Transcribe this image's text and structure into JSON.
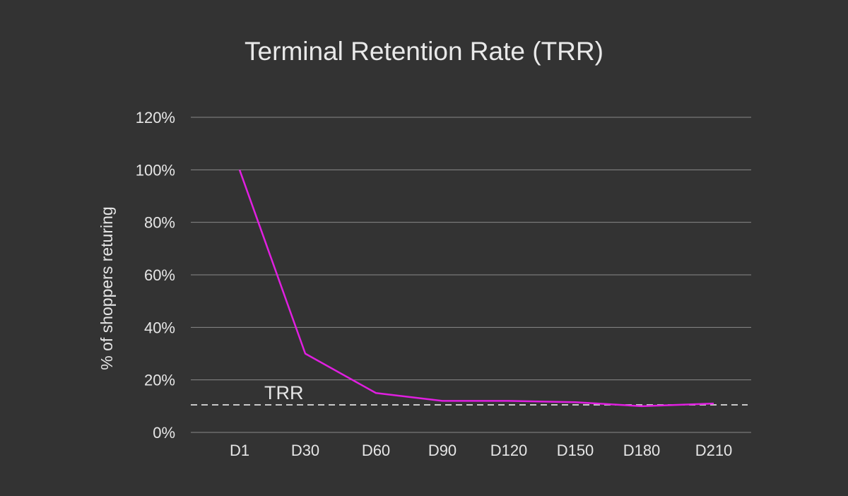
{
  "colors": {
    "background": "#333333",
    "gridline": "#8a8a8a",
    "text": "#e6e6e6",
    "series": "#e01fe0",
    "reference_line": "#c8c8c8"
  },
  "chart_data": {
    "type": "line",
    "title": "Terminal Retention Rate (TRR)",
    "xlabel": "",
    "ylabel": "% of shoppers returing",
    "categories": [
      "D1",
      "D30",
      "D60",
      "D90",
      "D120",
      "D150",
      "D180",
      "D210"
    ],
    "yticks": [
      "0%",
      "20%",
      "40%",
      "60%",
      "80%",
      "100%",
      "120%"
    ],
    "ylim": [
      0,
      120
    ],
    "grid": "horizontal",
    "series": [
      {
        "x": [
          "D1",
          "D30",
          "D60",
          "D90",
          "D120",
          "D150",
          "D180",
          "D210"
        ],
        "values": [
          100,
          30,
          15,
          12,
          12,
          11.5,
          10,
          11
        ]
      }
    ],
    "reference_line": {
      "label": "TRR",
      "value": 10.5,
      "style": "dashed"
    }
  }
}
